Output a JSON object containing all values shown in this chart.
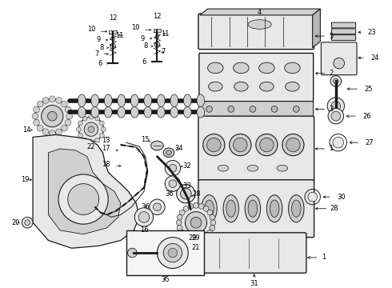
{
  "bg_color": "#ffffff",
  "line_color": "#1a1a1a",
  "fig_width": 4.9,
  "fig_height": 3.6,
  "dpi": 100,
  "label_fontsize": 6.0
}
